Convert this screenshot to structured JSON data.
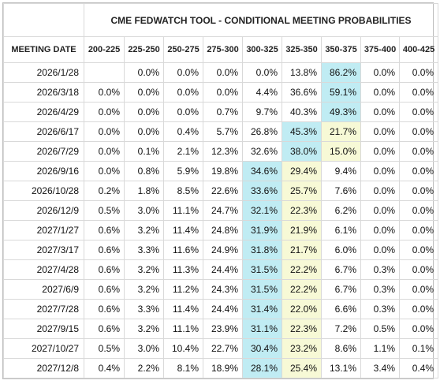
{
  "table": {
    "title": "CME FEDWATCH TOOL - CONDITIONAL MEETING PROBABILITIES",
    "date_header": "MEETING DATE",
    "columns": [
      "200-225",
      "225-250",
      "250-275",
      "275-300",
      "300-325",
      "325-350",
      "350-375",
      "375-400",
      "400-425"
    ],
    "highlight_colors": {
      "cyan": "#c0ecf3",
      "yellow": "#f7f9d6"
    },
    "rows": [
      {
        "date": "2026/1/28",
        "values": [
          "",
          "0.0%",
          "0.0%",
          "0.0%",
          "0.0%",
          "13.8%",
          "86.2%",
          "0.0%",
          "0.0%"
        ],
        "cyan": 6,
        "yellow": -1
      },
      {
        "date": "2026/3/18",
        "values": [
          "0.0%",
          "0.0%",
          "0.0%",
          "0.0%",
          "4.4%",
          "36.6%",
          "59.1%",
          "0.0%",
          "0.0%"
        ],
        "cyan": 6,
        "yellow": -1
      },
      {
        "date": "2026/4/29",
        "values": [
          "0.0%",
          "0.0%",
          "0.0%",
          "0.7%",
          "9.7%",
          "40.3%",
          "49.3%",
          "0.0%",
          "0.0%"
        ],
        "cyan": 6,
        "yellow": -1
      },
      {
        "date": "2026/6/17",
        "values": [
          "0.0%",
          "0.0%",
          "0.4%",
          "5.7%",
          "26.8%",
          "45.3%",
          "21.7%",
          "0.0%",
          "0.0%"
        ],
        "cyan": 5,
        "yellow": 6
      },
      {
        "date": "2026/7/29",
        "values": [
          "0.0%",
          "0.1%",
          "2.1%",
          "12.3%",
          "32.6%",
          "38.0%",
          "15.0%",
          "0.0%",
          "0.0%"
        ],
        "cyan": 5,
        "yellow": 6
      },
      {
        "date": "2026/9/16",
        "values": [
          "0.0%",
          "0.8%",
          "5.9%",
          "19.8%",
          "34.6%",
          "29.4%",
          "9.4%",
          "0.0%",
          "0.0%"
        ],
        "cyan": 4,
        "yellow": 5
      },
      {
        "date": "2026/10/28",
        "values": [
          "0.2%",
          "1.8%",
          "8.5%",
          "22.6%",
          "33.6%",
          "25.7%",
          "7.6%",
          "0.0%",
          "0.0%"
        ],
        "cyan": 4,
        "yellow": 5
      },
      {
        "date": "2026/12/9",
        "values": [
          "0.5%",
          "3.0%",
          "11.1%",
          "24.7%",
          "32.1%",
          "22.3%",
          "6.2%",
          "0.0%",
          "0.0%"
        ],
        "cyan": 4,
        "yellow": 5
      },
      {
        "date": "2027/1/27",
        "values": [
          "0.6%",
          "3.2%",
          "11.4%",
          "24.8%",
          "31.9%",
          "21.9%",
          "6.1%",
          "0.0%",
          "0.0%"
        ],
        "cyan": 4,
        "yellow": 5
      },
      {
        "date": "2027/3/17",
        "values": [
          "0.6%",
          "3.3%",
          "11.6%",
          "24.9%",
          "31.8%",
          "21.7%",
          "6.0%",
          "0.0%",
          "0.0%"
        ],
        "cyan": 4,
        "yellow": 5
      },
      {
        "date": "2027/4/28",
        "values": [
          "0.6%",
          "3.2%",
          "11.3%",
          "24.4%",
          "31.5%",
          "22.2%",
          "6.7%",
          "0.3%",
          "0.0%"
        ],
        "cyan": 4,
        "yellow": 5
      },
      {
        "date": "2027/6/9",
        "values": [
          "0.6%",
          "3.2%",
          "11.2%",
          "24.3%",
          "31.5%",
          "22.2%",
          "6.7%",
          "0.3%",
          "0.0%"
        ],
        "cyan": 4,
        "yellow": 5
      },
      {
        "date": "2027/7/28",
        "values": [
          "0.6%",
          "3.3%",
          "11.4%",
          "24.4%",
          "31.4%",
          "22.0%",
          "6.6%",
          "0.3%",
          "0.0%"
        ],
        "cyan": 4,
        "yellow": 5
      },
      {
        "date": "2027/9/15",
        "values": [
          "0.6%",
          "3.2%",
          "11.1%",
          "23.9%",
          "31.1%",
          "22.3%",
          "7.2%",
          "0.5%",
          "0.0%"
        ],
        "cyan": 4,
        "yellow": 5
      },
      {
        "date": "2027/10/27",
        "values": [
          "0.5%",
          "3.0%",
          "10.4%",
          "22.7%",
          "30.4%",
          "23.2%",
          "8.6%",
          "1.1%",
          "0.1%"
        ],
        "cyan": 4,
        "yellow": 5
      },
      {
        "date": "2027/12/8",
        "values": [
          "0.4%",
          "2.2%",
          "8.1%",
          "18.9%",
          "28.1%",
          "25.4%",
          "13.1%",
          "3.4%",
          "0.4%"
        ],
        "cyan": 4,
        "yellow": 5
      }
    ]
  }
}
